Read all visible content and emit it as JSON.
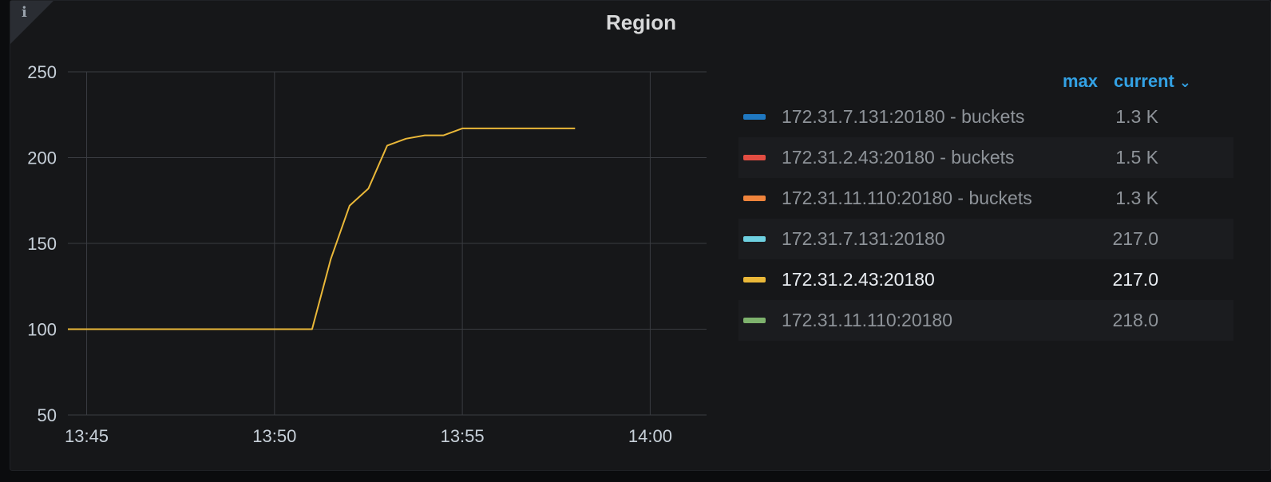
{
  "panel": {
    "title": "Region",
    "info_icon": "info-icon"
  },
  "legend": {
    "headers": {
      "max": "max",
      "current": "current"
    },
    "sort_icon": "chevron-down-icon",
    "items": [
      {
        "name": "172.31.7.131:20180 - buckets",
        "value": "1.3 K",
        "color": "#1f78c1"
      },
      {
        "name": "172.31.2.43:20180 - buckets",
        "value": "1.5 K",
        "color": "#e24d42"
      },
      {
        "name": "172.31.11.110:20180 - buckets",
        "value": "1.3 K",
        "color": "#ef843c"
      },
      {
        "name": "172.31.7.131:20180",
        "value": "217.0",
        "color": "#6ed0e0"
      },
      {
        "name": "172.31.2.43:20180",
        "value": "217.0",
        "color": "#eab839"
      },
      {
        "name": "172.31.11.110:20180",
        "value": "218.0",
        "color": "#7eb26d"
      }
    ]
  },
  "chart_data": {
    "type": "line",
    "title": "Region",
    "xlabel": "",
    "ylabel": "",
    "x_ticks": [
      "13:45",
      "13:50",
      "13:55",
      "14:00"
    ],
    "y_ticks": [
      50,
      100,
      150,
      200,
      250
    ],
    "ylim": [
      50,
      250
    ],
    "xlim_minutes": [
      "13:44.5",
      "14:01.5"
    ],
    "grid": true,
    "legend_placement": "right",
    "series": [
      {
        "name": "172.31.2.43:20180",
        "color": "#eab839",
        "points": [
          [
            "13:44.5",
            100
          ],
          [
            "13:51",
            100
          ],
          [
            "13:51.5",
            141
          ],
          [
            "13:52",
            172
          ],
          [
            "13:52.5",
            182
          ],
          [
            "13:53",
            207
          ],
          [
            "13:53.5",
            211
          ],
          [
            "13:54",
            213
          ],
          [
            "13:54.5",
            213
          ],
          [
            "13:55",
            217
          ],
          [
            "13:58",
            217
          ]
        ]
      }
    ]
  }
}
